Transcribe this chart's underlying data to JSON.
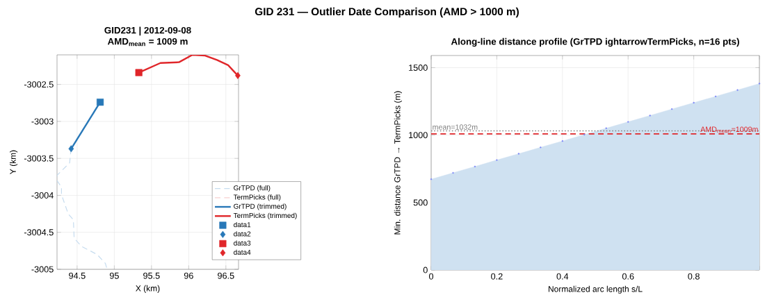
{
  "chart_data": [
    {
      "type": "line",
      "title": "GID231 | 2012-09-08",
      "subtitle": "AMD$_{mean}$ = 1009 m",
      "xlabel": "X (km)",
      "ylabel": "Y (km)",
      "annotations": [
        "GID 231 — Outlier Date Comparison  (AMD > 1000 m)"
      ],
      "xlim": [
        94.23,
        96.67
      ],
      "ylim": [
        -3005,
        -3002.1
      ],
      "xticks": [
        94.5,
        95,
        95.5,
        96,
        96.5
      ],
      "yticks": [
        -3005,
        -3004.5,
        -3004,
        -3003.5,
        -3003,
        -3002.5
      ],
      "grid": true,
      "legend": "bottom right",
      "series": [
        {
          "name": "GrTPD (full)",
          "type": "line",
          "line_style": "dashed",
          "color": "#c6dcef",
          "x": [
            94.42,
            94.41,
            94.4,
            94.3,
            94.23,
            94.23,
            94.29,
            94.29,
            94.38,
            94.45,
            94.46,
            94.56,
            94.77,
            94.88,
            94.9
          ],
          "values": [
            -3003.37,
            -3003.45,
            -3003.56,
            -3003.66,
            -3003.73,
            -3003.8,
            -3003.89,
            -3003.99,
            -3004.25,
            -3004.33,
            -3004.58,
            -3004.69,
            -3004.8,
            -3004.92,
            -3004.99
          ]
        },
        {
          "name": "TermPicks (full)",
          "type": "line",
          "line_style": "dashed",
          "color": "#f7d0d0"
        },
        {
          "name": "GrTPD (trimmed)",
          "type": "line",
          "line_style": "solid",
          "color": "#2878b8",
          "x": [
            94.42,
            94.81
          ],
          "values": [
            -3003.37,
            -3002.74
          ]
        },
        {
          "name": "TermPicks (trimmed)",
          "type": "line",
          "line_style": "solid",
          "color": "#e0262a",
          "x": [
            95.33,
            95.62,
            95.87,
            96.05,
            96.22,
            96.38,
            96.53,
            96.66
          ],
          "values": [
            -3002.34,
            -3002.21,
            -3002.2,
            -3002.1,
            -3002.11,
            -3002.17,
            -3002.24,
            -3002.38
          ]
        },
        {
          "name": "data1",
          "type": "scatter",
          "marker": "square",
          "color": "#2878b8",
          "x": [
            94.81
          ],
          "values": [
            -3002.74
          ]
        },
        {
          "name": "data2",
          "type": "scatter",
          "marker": "diamond",
          "color": "#2878b8",
          "x": [
            94.42
          ],
          "values": [
            -3003.37
          ]
        },
        {
          "name": "data3",
          "type": "scatter",
          "marker": "square",
          "color": "#e0262a",
          "x": [
            95.33
          ],
          "values": [
            -3002.34
          ]
        },
        {
          "name": "data4",
          "type": "scatter",
          "marker": "diamond",
          "color": "#e0262a",
          "x": [
            96.66
          ],
          "values": [
            -3002.38
          ]
        }
      ]
    },
    {
      "type": "area",
      "title": "Along-line distance profile (GrTPD ightarrowTermPicks, n=16 pts)",
      "xlabel": "Normalized arc length s/L",
      "ylabel": "Min.  distance  GrTPD → TermPicks   (m)",
      "xlim": [
        0,
        1
      ],
      "ylim": [
        0,
        1590
      ],
      "xticks": [
        0,
        0.2,
        0.4,
        0.6,
        0.8,
        {
          "value": 1,
          "label": null
        }
      ],
      "yticks": [
        0,
        500,
        1000,
        1500
      ],
      "grid": true,
      "marker": "circle",
      "series": [
        {
          "color": "#cfe1f1",
          "x": [
            0,
            0.0667,
            0.1333,
            0.2,
            0.2667,
            0.3333,
            0.4,
            0.4667,
            0.5333,
            0.6,
            0.6667,
            0.7333,
            0.8,
            0.8667,
            0.9333,
            1
          ],
          "values": [
            673,
            720,
            767,
            815,
            862,
            909,
            956,
            1004,
            1051,
            1098,
            1145,
            1193,
            1240,
            1287,
            1334,
            1382
          ]
        }
      ],
      "ref_lines": [
        {
          "axis": "y",
          "value": 1032,
          "label": "mean=1032m",
          "color": "#808080",
          "line_style": "dotted"
        },
        {
          "axis": "y",
          "value": 1009,
          "label": "AMD$_{mean}$=1009m",
          "color": "#e0262a",
          "line_style": "dashed"
        }
      ]
    }
  ]
}
